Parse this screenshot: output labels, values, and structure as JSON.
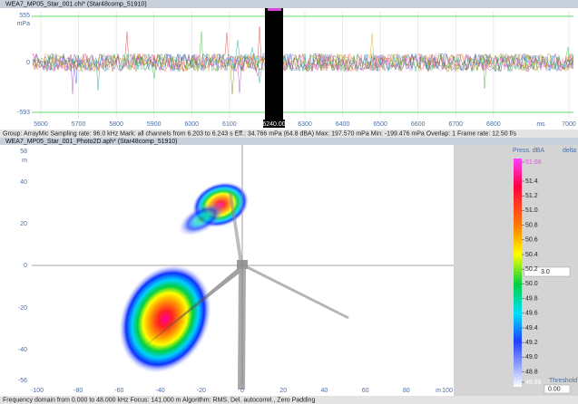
{
  "signal_window": {
    "title": "WEA7_MP05_Star_001.chi* (Star48comp_51910)",
    "y_labels": [
      "555",
      "mPa",
      "0",
      "-593"
    ],
    "x_labels": [
      "5600",
      "5700",
      "5800",
      "5900",
      "6000",
      "6100",
      "6300",
      "6400",
      "6500",
      "6600",
      "6700",
      "6800",
      "7000"
    ],
    "x_unit": "ms",
    "marker_label": "6240.00"
  },
  "status_top": "Group: ArrayMic Sampling rate: 96.0 kHz Mark: all channels from 6.203 to 6.243 s Eff.: 34.766 mPa (64.8 dBA) Max: 197.570 mPa Min: -199.476 mPa Overlap: 1 Frame rate: 12.50 f/s",
  "map_window": {
    "title": "WEA7_MP05_Star_001_Photo2D.aph* (Star48comp_51910)",
    "y_labels": [
      "58",
      "m",
      "40",
      "20",
      "0",
      "-20",
      "-40",
      "-56"
    ],
    "x_labels": [
      "-100",
      "-80",
      "-60",
      "-40",
      "-20",
      "0",
      "20",
      "40",
      "60",
      "80",
      "100"
    ],
    "x_unit": "m"
  },
  "color_scale": {
    "title": "Press. dBA",
    "mode": "delta",
    "labels": [
      "51.66",
      "51.4",
      "51.2",
      "51.0",
      "50.8",
      "50.6",
      "50.4",
      "50.2",
      "50.0",
      "49.8",
      "49.6",
      "49.4",
      "49.2",
      "49.0",
      "48.8",
      "48.66"
    ],
    "value_box": "3.0",
    "threshold_label": "Threshold",
    "threshold_value": "0.00"
  },
  "status_bottom": "Frequency domain from 0.000 to 48.000 kHz Focus: 141.000 m Algorithm: RMS, Del. autocorrel., Zero Padding"
}
